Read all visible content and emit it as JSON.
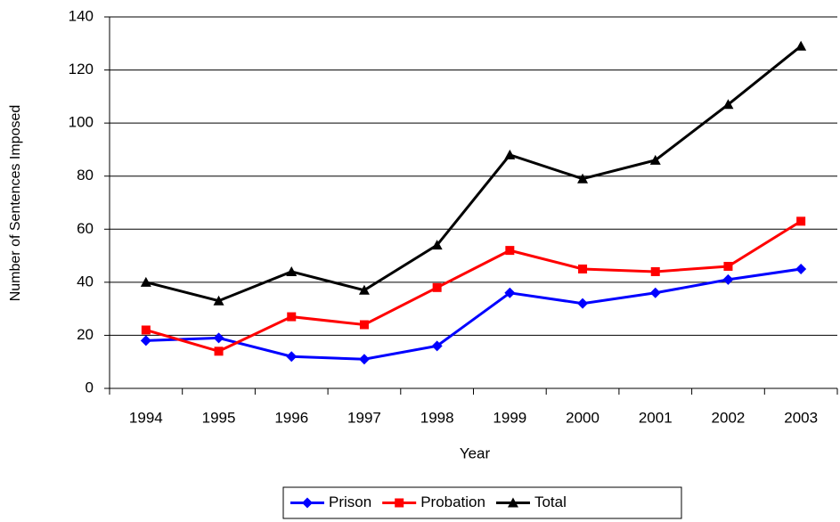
{
  "chart_data": {
    "type": "line",
    "x_label": "Year",
    "y_label": "Number of Sentences Imposed",
    "categories": [
      "1994",
      "1995",
      "1996",
      "1997",
      "1998",
      "1999",
      "2000",
      "2001",
      "2002",
      "2003"
    ],
    "series": [
      {
        "name": "Prison",
        "color": "#0000ff",
        "marker": "diamond",
        "values": [
          18,
          19,
          12,
          11,
          16,
          36,
          32,
          36,
          41,
          45
        ]
      },
      {
        "name": "Probation",
        "color": "#ff0000",
        "marker": "square",
        "values": [
          22,
          14,
          27,
          24,
          38,
          52,
          45,
          44,
          46,
          63
        ]
      },
      {
        "name": "Total",
        "color": "#000000",
        "marker": "triangle",
        "values": [
          40,
          33,
          44,
          37,
          54,
          88,
          79,
          86,
          107,
          129
        ]
      }
    ],
    "ylim": [
      0,
      140
    ],
    "yticks": [
      0,
      20,
      40,
      60,
      80,
      100,
      120,
      140
    ],
    "grid": true,
    "legend": "bottom"
  }
}
